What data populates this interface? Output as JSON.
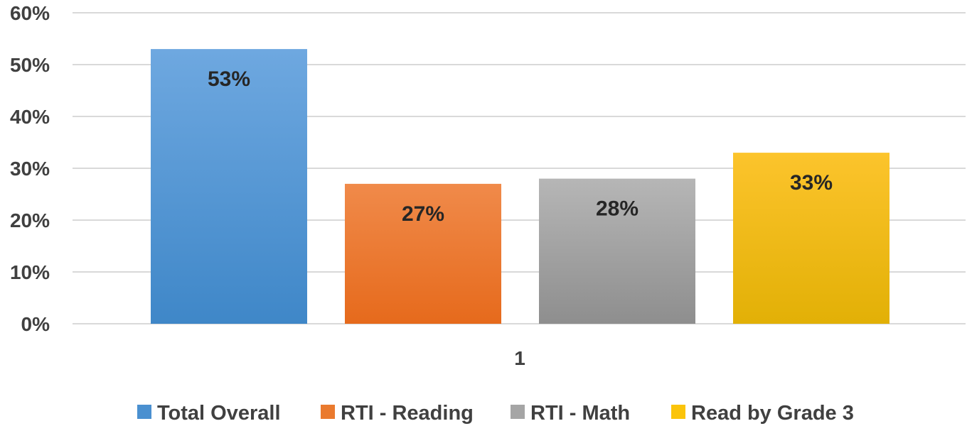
{
  "chart_data": {
    "type": "bar",
    "categories": [
      "1"
    ],
    "series": [
      {
        "name": "Total Overall",
        "values": [
          0.53
        ],
        "label": "53%",
        "color": "#4a90d0"
      },
      {
        "name": "RTI - Reading",
        "values": [
          0.27
        ],
        "label": "27%",
        "color": "#ea7a2e"
      },
      {
        "name": "RTI - Math",
        "values": [
          0.28
        ],
        "label": "28%",
        "color": "#a5a5a5"
      },
      {
        "name": "Read by Grade 3",
        "values": [
          0.33
        ],
        "label": "33%",
        "color": "#fbc40a"
      }
    ],
    "ylim": [
      0,
      0.6
    ],
    "yticks": [
      "0%",
      "10%",
      "20%",
      "30%",
      "40%",
      "50%",
      "60%"
    ],
    "grid": true,
    "legend_position": "bottom"
  }
}
